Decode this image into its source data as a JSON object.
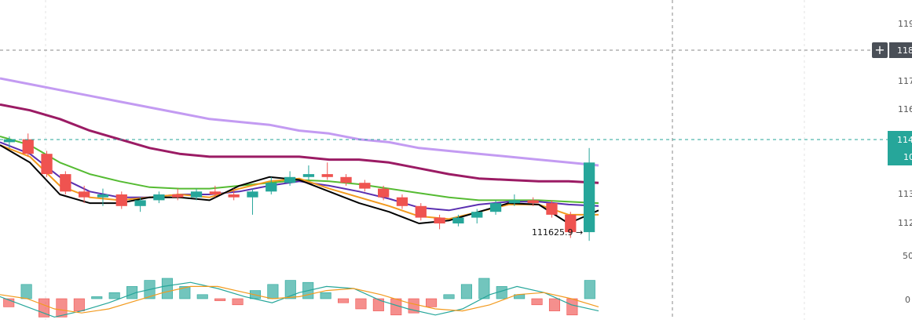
{
  "chart_data": {
    "type": "candlestick",
    "price_axis": {
      "visible_tick_fragments": [
        "119",
        "117",
        "116",
        "113",
        "112",
        "50"
      ],
      "crosshair_label": "118",
      "current_price_label_top": "114",
      "current_price_label_bottom": "10",
      "approx_range": [
        111400,
        119300
      ]
    },
    "macd_axis": {
      "visible_tick_fragments": [
        "0"
      ]
    },
    "low_annotation": {
      "value": 111625.9,
      "text": "111625.9",
      "arrow": "→"
    },
    "moving_averages": [
      {
        "color": "#c39bf2",
        "values": [
          117.3,
          117.1,
          116.9,
          116.7,
          116.5,
          116.3,
          116.1,
          115.9,
          115.8,
          115.7,
          115.5,
          115.4,
          115.2,
          115.1,
          114.9,
          114.8,
          114.7,
          114.6,
          114.5,
          114.4,
          114.3
        ]
      },
      {
        "color": "#9b1b64",
        "values": [
          116.4,
          116.2,
          115.9,
          115.5,
          115.2,
          114.9,
          114.7,
          114.6,
          114.6,
          114.6,
          114.6,
          114.5,
          114.5,
          114.4,
          114.2,
          114.0,
          113.85,
          113.8,
          113.75,
          113.75,
          113.7
        ]
      },
      {
        "color": "#55bb32",
        "values": [
          115.3,
          115.0,
          114.4,
          114.0,
          113.75,
          113.55,
          113.5,
          113.5,
          113.6,
          113.7,
          113.8,
          113.75,
          113.65,
          113.5,
          113.35,
          113.2,
          113.1,
          113.1,
          113.1,
          113.05,
          113.0
        ]
      },
      {
        "color": "#5a2fb0",
        "values": [
          115.1,
          114.7,
          113.9,
          113.4,
          113.2,
          113.2,
          113.3,
          113.3,
          113.4,
          113.6,
          113.75,
          113.6,
          113.4,
          113.15,
          112.85,
          112.75,
          112.95,
          113.05,
          113.05,
          112.95,
          112.9
        ]
      },
      {
        "color": "#f29a1e",
        "values": [
          115.0,
          114.6,
          113.6,
          113.2,
          113.1,
          113.2,
          113.3,
          113.2,
          113.5,
          113.75,
          113.85,
          113.5,
          113.2,
          112.9,
          112.55,
          112.45,
          112.7,
          112.95,
          112.95,
          112.6,
          112.6
        ]
      },
      {
        "color": "#000000",
        "values": [
          115.0,
          114.4,
          113.3,
          113.0,
          113.0,
          113.2,
          113.2,
          113.1,
          113.6,
          113.9,
          113.8,
          113.4,
          113.0,
          112.7,
          112.3,
          112.4,
          112.7,
          113.0,
          112.95,
          112.3,
          112.75
        ]
      }
    ],
    "candles": [
      {
        "o": 115.1,
        "h": 115.3,
        "l": 114.9,
        "c": 115.2
      },
      {
        "o": 115.2,
        "h": 115.4,
        "l": 114.6,
        "c": 114.7
      },
      {
        "o": 114.7,
        "h": 114.8,
        "l": 113.9,
        "c": 114.0
      },
      {
        "o": 114.0,
        "h": 114.1,
        "l": 113.3,
        "c": 113.4
      },
      {
        "o": 113.4,
        "h": 113.6,
        "l": 113.0,
        "c": 113.2
      },
      {
        "o": 113.2,
        "h": 113.5,
        "l": 112.9,
        "c": 113.3
      },
      {
        "o": 113.3,
        "h": 113.4,
        "l": 112.8,
        "c": 112.9
      },
      {
        "o": 112.9,
        "h": 113.2,
        "l": 112.7,
        "c": 113.1
      },
      {
        "o": 113.1,
        "h": 113.4,
        "l": 113.0,
        "c": 113.3
      },
      {
        "o": 113.3,
        "h": 113.5,
        "l": 113.1,
        "c": 113.2
      },
      {
        "o": 113.2,
        "h": 113.5,
        "l": 113.1,
        "c": 113.4
      },
      {
        "o": 113.4,
        "h": 113.6,
        "l": 113.2,
        "c": 113.3
      },
      {
        "o": 113.3,
        "h": 113.5,
        "l": 113.1,
        "c": 113.2
      },
      {
        "o": 113.2,
        "h": 113.5,
        "l": 112.6,
        "c": 113.4
      },
      {
        "o": 113.4,
        "h": 113.9,
        "l": 113.3,
        "c": 113.7
      },
      {
        "o": 113.7,
        "h": 114.1,
        "l": 113.6,
        "c": 113.9
      },
      {
        "o": 113.9,
        "h": 114.3,
        "l": 113.8,
        "c": 114.0
      },
      {
        "o": 114.0,
        "h": 114.4,
        "l": 113.8,
        "c": 113.9
      },
      {
        "o": 113.9,
        "h": 114.0,
        "l": 113.6,
        "c": 113.7
      },
      {
        "o": 113.7,
        "h": 113.8,
        "l": 113.4,
        "c": 113.5
      },
      {
        "o": 113.5,
        "h": 113.6,
        "l": 113.1,
        "c": 113.2
      },
      {
        "o": 113.2,
        "h": 113.3,
        "l": 112.8,
        "c": 112.9
      },
      {
        "o": 112.9,
        "h": 113.0,
        "l": 112.4,
        "c": 112.5
      },
      {
        "o": 112.5,
        "h": 112.6,
        "l": 112.1,
        "c": 112.3
      },
      {
        "o": 112.3,
        "h": 112.6,
        "l": 112.2,
        "c": 112.5
      },
      {
        "o": 112.5,
        "h": 112.8,
        "l": 112.3,
        "c": 112.7
      },
      {
        "o": 112.7,
        "h": 113.1,
        "l": 112.6,
        "c": 113.0
      },
      {
        "o": 113.0,
        "h": 113.3,
        "l": 112.9,
        "c": 113.1
      },
      {
        "o": 113.1,
        "h": 113.2,
        "l": 112.9,
        "c": 113.0
      },
      {
        "o": 113.0,
        "h": 113.1,
        "l": 112.5,
        "c": 112.6
      },
      {
        "o": 112.6,
        "h": 112.7,
        "l": 111.8,
        "c": 112.0
      },
      {
        "o": 112.0,
        "h": 114.9,
        "l": 111.7,
        "c": 114.4
      }
    ],
    "macd": {
      "histogram": [
        -0.4,
        0.7,
        -0.9,
        -0.9,
        -0.6,
        0.1,
        0.3,
        0.6,
        0.9,
        1.0,
        0.6,
        0.2,
        -0.1,
        -0.3,
        0.4,
        0.7,
        0.9,
        0.8,
        0.3,
        -0.2,
        -0.5,
        -0.6,
        -0.8,
        -0.7,
        -0.4,
        0.2,
        0.7,
        1.0,
        0.6,
        0.2,
        -0.3,
        -0.6,
        -0.8,
        0.9
      ],
      "macd_line": [
        0.1,
        -0.4,
        -0.9,
        -0.6,
        -0.2,
        0.3,
        0.6,
        0.8,
        0.5,
        0.1,
        -0.2,
        0.3,
        0.6,
        0.5,
        -0.1,
        -0.5,
        -0.8,
        -0.5,
        0.2,
        0.6,
        0.3,
        -0.3,
        -0.6
      ],
      "signal_line": [
        0.2,
        0.0,
        -0.5,
        -0.7,
        -0.5,
        -0.1,
        0.3,
        0.6,
        0.6,
        0.3,
        0.0,
        0.1,
        0.4,
        0.5,
        0.2,
        -0.2,
        -0.5,
        -0.6,
        -0.3,
        0.2,
        0.3,
        0.0,
        -0.4
      ]
    },
    "colors": {
      "up": "#26a69a",
      "down": "#ef5350",
      "grid": "#c9c9c9",
      "crosshair": "#8a8a8a"
    }
  }
}
